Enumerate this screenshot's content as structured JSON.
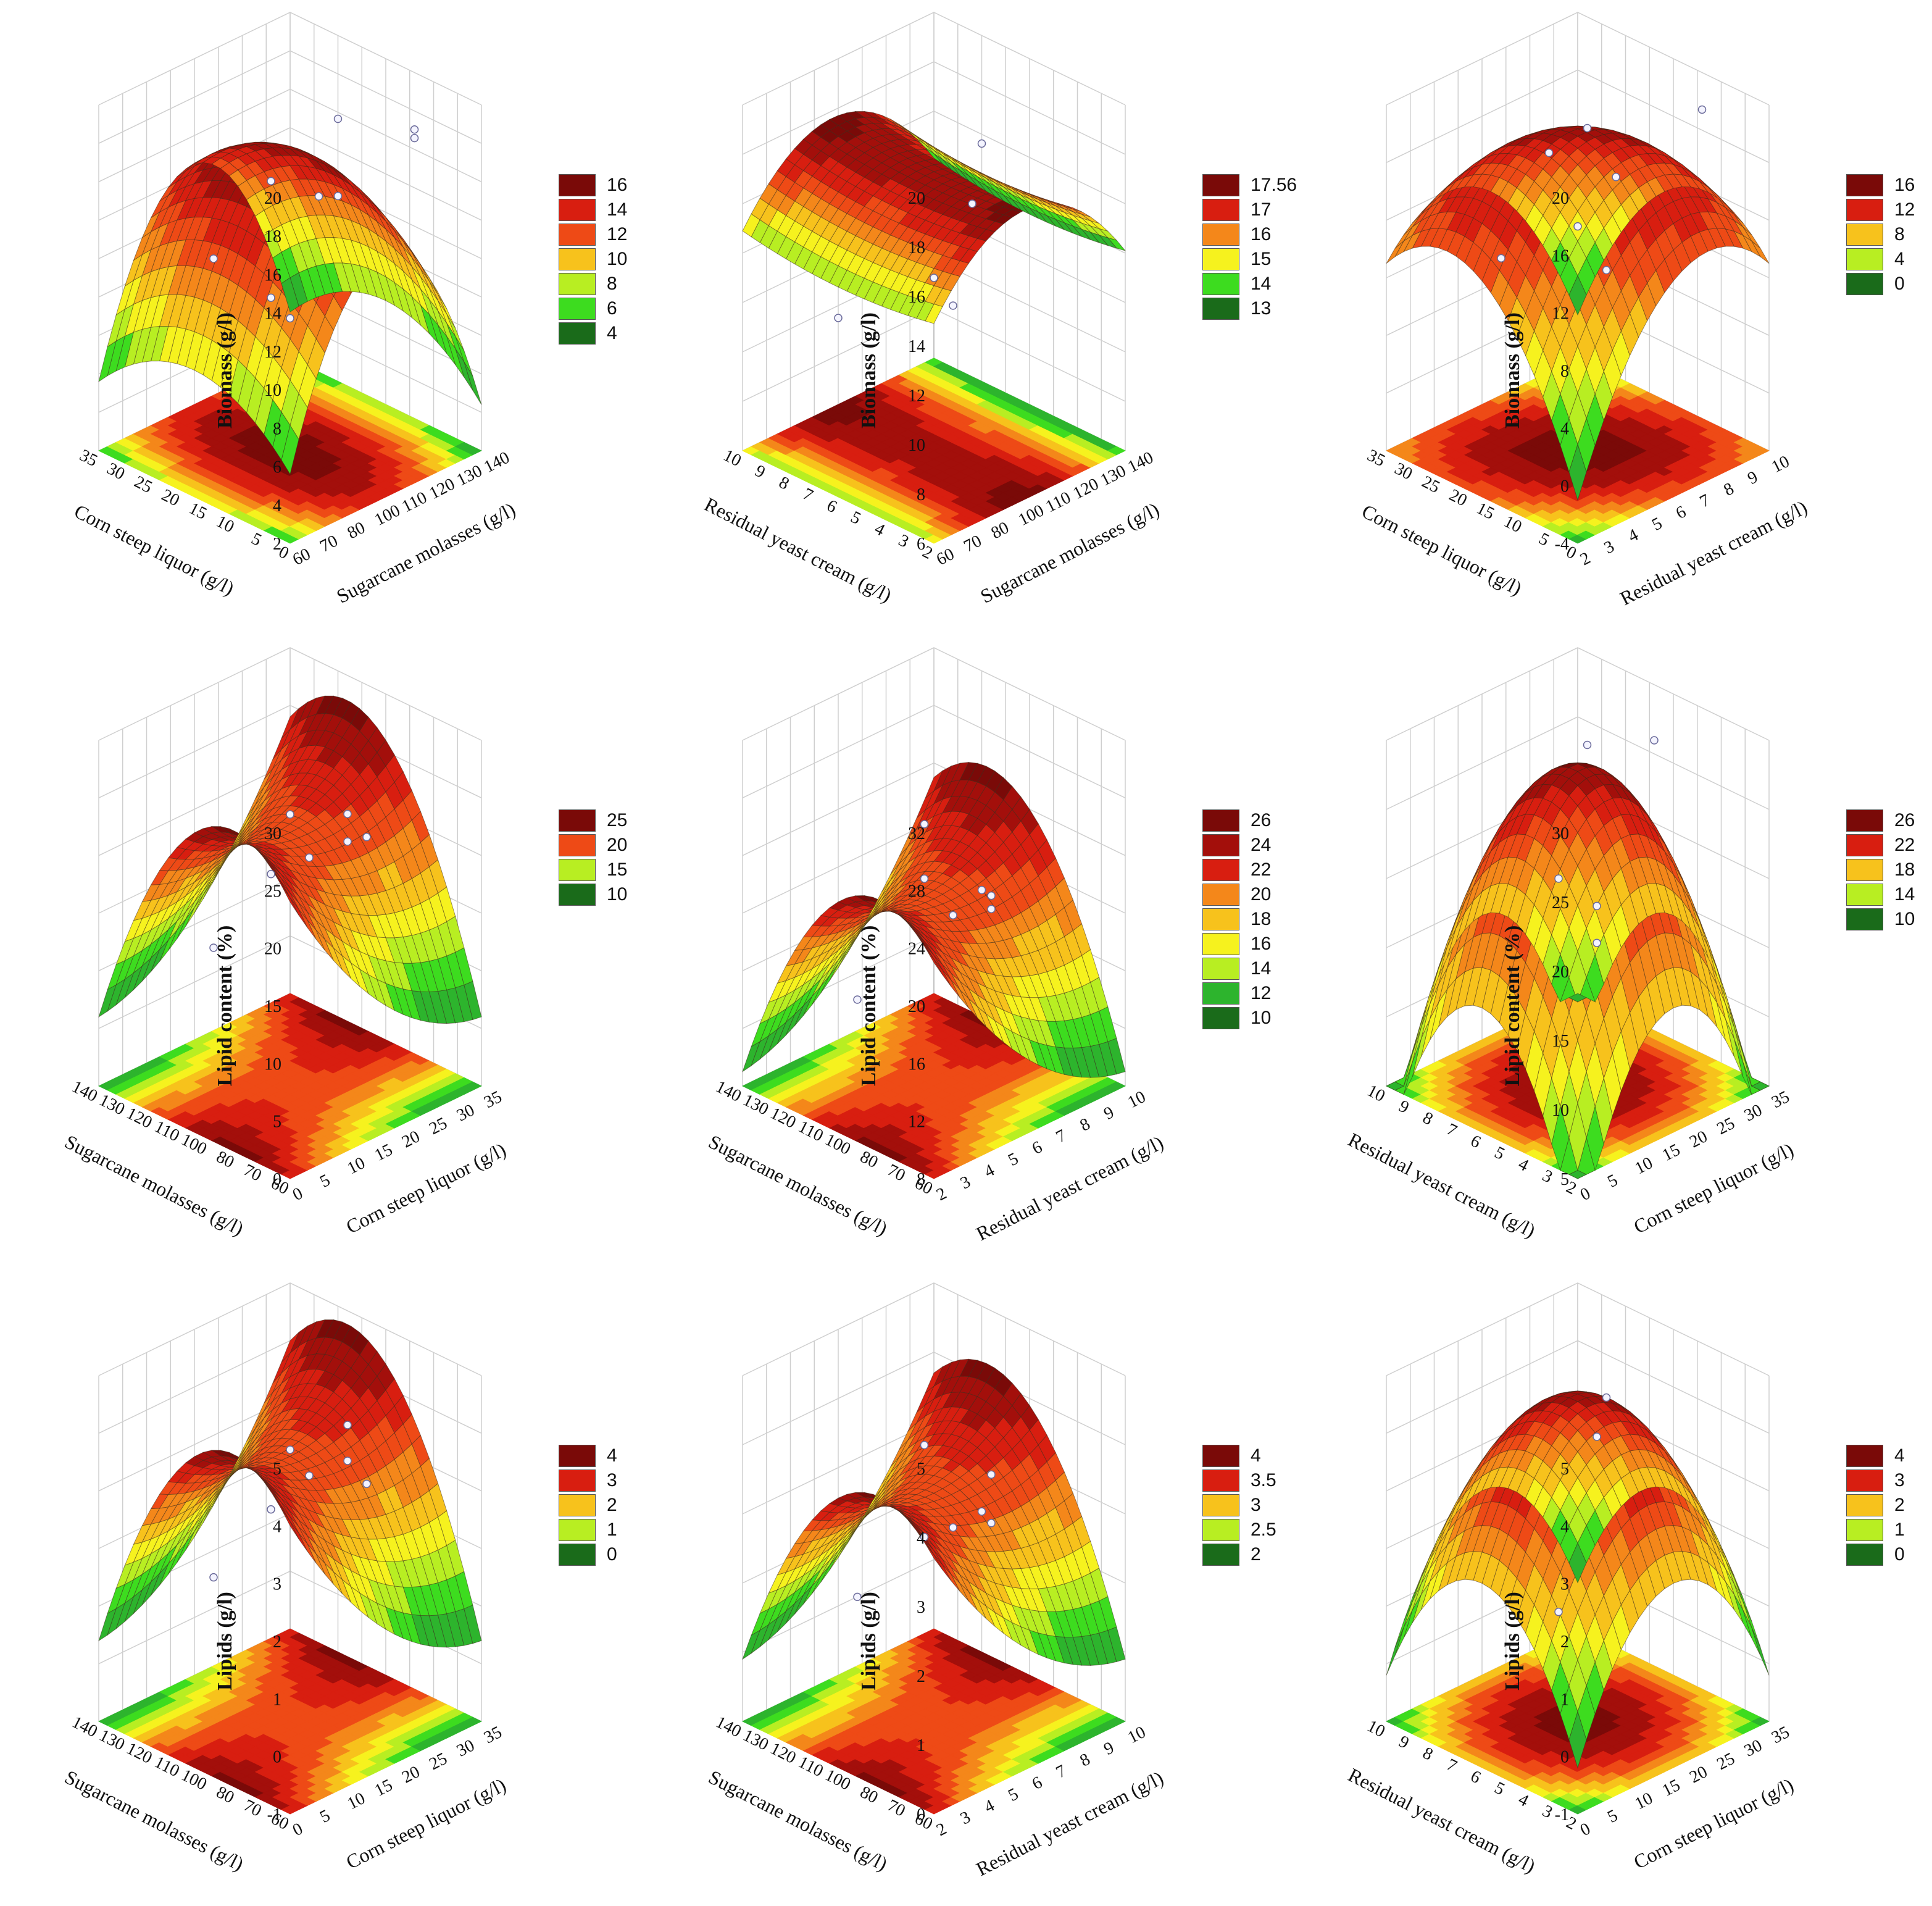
{
  "chart_data": [
    {
      "type": "surface3d",
      "row": 1,
      "col": 1,
      "zlabel": "Biomass (g/l)",
      "zticks": [
        "2",
        "4",
        "6",
        "8",
        "10",
        "12",
        "14",
        "16",
        "18",
        "20"
      ],
      "xlabel": "Corn steep liquor (g/l)",
      "xticks": [
        "0",
        "5",
        "10",
        "15",
        "20",
        "25",
        "30",
        "35"
      ],
      "ylabel": "Sugarcane molasses (g/l)",
      "yticks": [
        "60",
        "70",
        "80",
        "100",
        "110",
        "120",
        "130",
        "140"
      ],
      "zlim": [
        2,
        20
      ],
      "legend": [
        "16",
        "14",
        "12",
        "10",
        "8",
        "6",
        "4"
      ],
      "surface": {
        "c": 17.5,
        "a": -3.0,
        "b": -9.5,
        "ia": 0.0,
        "ib": -1.2,
        "ab": 0.0
      },
      "points": [
        [
          0.55,
          0.35,
          17
        ],
        [
          0.7,
          0.55,
          20
        ],
        [
          0.9,
          0.75,
          19
        ],
        [
          0.75,
          0.9,
          18
        ],
        [
          0.55,
          0.6,
          15
        ],
        [
          0.65,
          0.6,
          15.5
        ],
        [
          0.3,
          0.3,
          12
        ],
        [
          0.35,
          0.55,
          9
        ],
        [
          0.2,
          0.8,
          6
        ]
      ]
    },
    {
      "type": "surface3d",
      "row": 1,
      "col": 2,
      "zlabel": "Biomass (g/l)",
      "zticks": [
        "6",
        "8",
        "10",
        "12",
        "14",
        "16",
        "18",
        "20"
      ],
      "xlabel": "Residual yeast cream (g/l)",
      "xticks": [
        "2",
        "3",
        "4",
        "5",
        "6",
        "7",
        "8",
        "9",
        "10"
      ],
      "ylabel": "Sugarcane molasses (g/l)",
      "yticks": [
        "60",
        "70",
        "80",
        "100",
        "110",
        "120",
        "130",
        "140"
      ],
      "zlim": [
        6,
        20
      ],
      "legend": [
        "17.56",
        "17",
        "16",
        "15",
        "14",
        "13"
      ],
      "surface": {
        "c": 17.3,
        "a": 0.4,
        "b": -3.2,
        "ia": 0.0,
        "ib": -0.8,
        "ab": 0.0
      },
      "points": [
        [
          0.7,
          0.55,
          19
        ],
        [
          0.6,
          0.6,
          16
        ],
        [
          0.5,
          0.5,
          13
        ],
        [
          0.2,
          0.3,
          11
        ],
        [
          0.3,
          0.8,
          10
        ]
      ]
    },
    {
      "type": "surface3d",
      "row": 1,
      "col": 3,
      "zlabel": "Biomass (g/l)",
      "zticks": [
        "-4",
        "0",
        "4",
        "8",
        "12",
        "16",
        "20"
      ],
      "xlabel": "Corn steep liquor (g/l)",
      "xticks": [
        "0",
        "5",
        "10",
        "15",
        "20",
        "25",
        "30",
        "35"
      ],
      "ylabel": "Residual yeast cream (g/l)",
      "yticks": [
        "2",
        "3",
        "4",
        "5",
        "6",
        "7",
        "8",
        "9",
        "10"
      ],
      "zlim": [
        -4,
        20
      ],
      "legend": [
        "16",
        "12",
        "8",
        "4",
        "0"
      ],
      "surface": {
        "c": 18.0,
        "a": -7.0,
        "b": -7.0,
        "ia": 0.0,
        "ib": 0.0,
        "ab": 5.0
      },
      "points": [
        [
          0.65,
          0.4,
          20
        ],
        [
          0.85,
          0.8,
          20
        ],
        [
          0.6,
          0.6,
          15
        ],
        [
          0.45,
          0.4,
          17
        ],
        [
          0.35,
          0.25,
          10
        ],
        [
          0.3,
          0.7,
          9
        ],
        [
          0.3,
          0.85,
          5
        ]
      ]
    },
    {
      "type": "surface3d",
      "row": 2,
      "col": 1,
      "zlabel": "Lipid content (%)",
      "zticks": [
        "0",
        "5",
        "10",
        "15",
        "20",
        "25",
        "30"
      ],
      "xlabel": "Sugarcane molasses (g/l)",
      "xticks": [
        "60",
        "70",
        "80",
        "100",
        "110",
        "120",
        "130",
        "140"
      ],
      "ylabel": "Corn steep liquor (g/l)",
      "yticks": [
        "0",
        "5",
        "10",
        "15",
        "20",
        "25",
        "30",
        "35"
      ],
      "zlim": [
        0,
        30
      ],
      "legend": [
        "25",
        "20",
        "15",
        "10"
      ],
      "surface": {
        "c": 22.0,
        "a": -11.0,
        "b": 4.0,
        "ia": 0.0,
        "ib": 0.0,
        "ab": -9.0
      },
      "points": [
        [
          0.9,
          0.1,
          30
        ],
        [
          0.55,
          0.35,
          20
        ],
        [
          0.55,
          0.75,
          22
        ],
        [
          0.6,
          0.8,
          20
        ],
        [
          0.45,
          0.85,
          18
        ],
        [
          0.3,
          0.3,
          12
        ],
        [
          0.25,
          0.85,
          15
        ]
      ]
    },
    {
      "type": "surface3d",
      "row": 2,
      "col": 2,
      "zlabel": "Lipid content (%)",
      "zticks": [
        "8",
        "12",
        "16",
        "20",
        "24",
        "28",
        "32"
      ],
      "xlabel": "Sugarcane molasses (g/l)",
      "xticks": [
        "60",
        "70",
        "80",
        "100",
        "110",
        "120",
        "130",
        "140"
      ],
      "ylabel": "Residual yeast cream (g/l)",
      "yticks": [
        "2",
        "3",
        "4",
        "5",
        "6",
        "7",
        "8",
        "9",
        "10"
      ],
      "zlim": [
        8,
        32
      ],
      "legend": [
        "26",
        "24",
        "22",
        "20",
        "18",
        "16",
        "14",
        "12",
        "10"
      ],
      "surface": {
        "c": 21.0,
        "a": -8.0,
        "b": 3.0,
        "ia": 0.0,
        "ib": 0.0,
        "ab": -7.0
      },
      "points": [
        [
          0.85,
          0.1,
          31
        ],
        [
          0.6,
          0.35,
          24
        ],
        [
          0.5,
          0.75,
          20
        ],
        [
          0.55,
          0.75,
          19
        ],
        [
          0.4,
          0.9,
          18
        ],
        [
          0.3,
          0.3,
          14
        ],
        [
          0.25,
          0.85,
          16
        ]
      ]
    },
    {
      "type": "surface3d",
      "row": 2,
      "col": 3,
      "zlabel": "Lipid content (%)",
      "zticks": [
        "5",
        "10",
        "15",
        "20",
        "25",
        "30"
      ],
      "xlabel": "Residual yeast cream (g/l)",
      "xticks": [
        "2",
        "3",
        "4",
        "5",
        "6",
        "7",
        "8",
        "9",
        "10"
      ],
      "ylabel": "Corn steep liquor (g/l)",
      "yticks": [
        "0",
        "5",
        "10",
        "15",
        "20",
        "25",
        "30",
        "35"
      ],
      "zlim": [
        5,
        30
      ],
      "legend": [
        "26",
        "22",
        "18",
        "14",
        "10"
      ],
      "surface": {
        "c": 28.0,
        "a": -14.0,
        "b": -14.0,
        "ia": 0.0,
        "ib": 0.0,
        "ab": 0.0
      },
      "points": [
        [
          0.55,
          0.5,
          30
        ],
        [
          0.7,
          0.7,
          30
        ],
        [
          0.45,
          0.45,
          20
        ],
        [
          0.3,
          0.8,
          12
        ],
        [
          0.25,
          0.85,
          14
        ]
      ]
    },
    {
      "type": "surface3d",
      "row": 3,
      "col": 1,
      "zlabel": "Lipids (g/l)",
      "zticks": [
        "-1",
        "0",
        "1",
        "2",
        "3",
        "4",
        "5"
      ],
      "xlabel": "Sugarcane molasses (g/l)",
      "xticks": [
        "60",
        "70",
        "80",
        "100",
        "110",
        "120",
        "130",
        "140"
      ],
      "ylabel": "Corn steep liquor (g/l)",
      "yticks": [
        "0",
        "5",
        "10",
        "15",
        "20",
        "25",
        "30",
        "35"
      ],
      "zlim": [
        -1,
        5
      ],
      "legend": [
        "4",
        "3",
        "2",
        "1",
        "0"
      ],
      "surface": {
        "c": 3.6,
        "a": -2.2,
        "b": 0.8,
        "ia": 0.0,
        "ib": 0.0,
        "ab": -1.8
      },
      "points": [
        [
          0.9,
          0.1,
          5
        ],
        [
          0.55,
          0.35,
          3
        ],
        [
          0.55,
          0.75,
          3.2
        ],
        [
          0.6,
          0.8,
          2.8
        ],
        [
          0.45,
          0.85,
          3.5
        ],
        [
          0.3,
          0.3,
          1.5
        ],
        [
          0.25,
          0.85,
          2.3
        ]
      ]
    },
    {
      "type": "surface3d",
      "row": 3,
      "col": 2,
      "zlabel": "Lipids (g/l)",
      "zticks": [
        "0",
        "1",
        "2",
        "3",
        "4",
        "5"
      ],
      "xlabel": "Sugarcane molasses (g/l)",
      "xticks": [
        "60",
        "70",
        "80",
        "100",
        "110",
        "120",
        "130",
        "140"
      ],
      "ylabel": "Residual yeast cream (g/l)",
      "yticks": [
        "2",
        "3",
        "4",
        "5",
        "6",
        "7",
        "8",
        "9",
        "10"
      ],
      "zlim": [
        0,
        5
      ],
      "legend": [
        "4",
        "3.5",
        "3",
        "2.5",
        "2"
      ],
      "surface": {
        "c": 3.3,
        "a": -1.6,
        "b": 0.6,
        "ia": 0.0,
        "ib": 0.0,
        "ab": -1.4
      },
      "points": [
        [
          0.85,
          0.1,
          5
        ],
        [
          0.6,
          0.35,
          3
        ],
        [
          0.5,
          0.75,
          2.7
        ],
        [
          0.55,
          0.75,
          2.6
        ],
        [
          0.4,
          0.9,
          2.9
        ],
        [
          0.3,
          0.3,
          1.8
        ],
        [
          0.25,
          0.85,
          2
        ]
      ]
    },
    {
      "type": "surface3d",
      "row": 3,
      "col": 3,
      "zlabel": "Lipids (g/l)",
      "zticks": [
        "-1",
        "0",
        "1",
        "2",
        "3",
        "4",
        "5"
      ],
      "xlabel": "Residual yeast cream (g/l)",
      "xticks": [
        "2",
        "3",
        "4",
        "5",
        "6",
        "7",
        "8",
        "9",
        "10"
      ],
      "ylabel": "Corn steep liquor (g/l)",
      "yticks": [
        "0",
        "5",
        "10",
        "15",
        "20",
        "25",
        "30",
        "35"
      ],
      "zlim": [
        -1,
        5
      ],
      "legend": [
        "4",
        "3",
        "2",
        "1",
        "0"
      ],
      "surface": {
        "c": 4.6,
        "a": -2.4,
        "b": -2.4,
        "ia": 0.0,
        "ib": 0.0,
        "ab": 0.0
      },
      "points": [
        [
          0.6,
          0.55,
          4.7
        ],
        [
          0.6,
          0.5,
          4.1
        ],
        [
          0.45,
          0.45,
          0.9
        ]
      ]
    }
  ],
  "palette": [
    "#1a6b1a",
    "#2db42d",
    "#3ddc1f",
    "#b8ee22",
    "#f6f21e",
    "#f7c21c",
    "#f4871a",
    "#ee4a16",
    "#d81e10",
    "#a30f0b",
    "#7a0a08"
  ]
}
